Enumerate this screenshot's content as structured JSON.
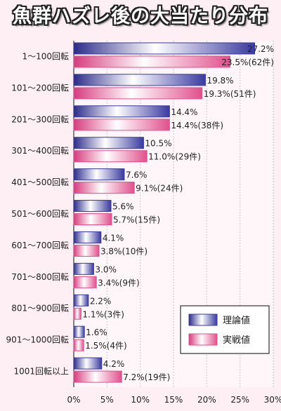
{
  "chart_data": {
    "type": "bar",
    "orientation": "horizontal",
    "title": "魚群ハズレ後の大当たり分布",
    "categories": [
      "1〜100回転",
      "101〜200回転",
      "201〜300回転",
      "301〜400回転",
      "401〜500回転",
      "501〜600回転",
      "601〜700回転",
      "701〜800回転",
      "801〜900回転",
      "901〜1000回転",
      "1001回転以上"
    ],
    "series": [
      {
        "name": "理論値",
        "color": "#3a3aa0",
        "values": [
          27.2,
          19.8,
          14.4,
          10.5,
          7.6,
          5.6,
          4.1,
          3.0,
          2.2,
          1.6,
          4.2
        ],
        "labels": [
          "27.2%",
          "19.8%",
          "14.4%",
          "10.5%",
          "7.6%",
          "5.6%",
          "4.1%",
          "3.0%",
          "2.2%",
          "1.6%",
          "4.2%"
        ]
      },
      {
        "name": "実戦値",
        "color": "#e0508c",
        "values": [
          23.5,
          19.3,
          14.4,
          11.0,
          9.1,
          5.7,
          3.8,
          3.4,
          1.1,
          1.5,
          7.2
        ],
        "labels": [
          "23.5%(62件)",
          "19.3%(51件)",
          "14.4%(38件)",
          "11.0%(29件)",
          "9.1%(24件)",
          "5.7%(15件)",
          "3.8%(10件)",
          "3.4%(9件)",
          "1.1%(3件)",
          "1.5%(4件)",
          "7.2%(19件)"
        ]
      }
    ],
    "x_ticks": [
      "0%",
      "5%",
      "10%",
      "15%",
      "20%",
      "25%",
      "30%"
    ],
    "xlim": [
      0,
      30
    ],
    "grid": true,
    "legend_position": "bottom-right"
  }
}
